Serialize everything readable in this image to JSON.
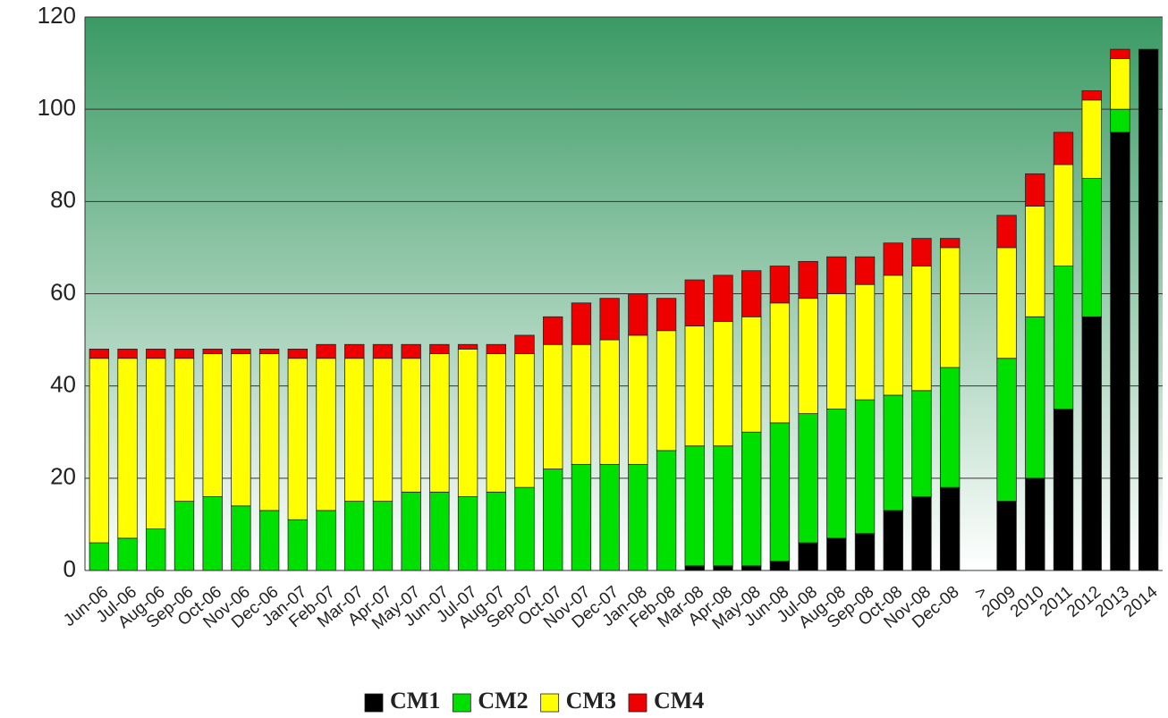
{
  "chart_data": {
    "type": "stacked_bar",
    "categories": [
      "Jun-06",
      "Jul-06",
      "Aug-06",
      "Sep-06",
      "Oct-06",
      "Nov-06",
      "Dec-06",
      "Jan-07",
      "Feb-07",
      "Mar-07",
      "Apr-07",
      "May-07",
      "Jun-07",
      "Jul-07",
      "Aug-07",
      "Sep-07",
      "Oct-07",
      "Nov-07",
      "Dec-07",
      "Jan-08",
      "Feb-08",
      "Mar-08",
      "Apr-08",
      "May-08",
      "Jun-08",
      "Jul-08",
      "Aug-08",
      "Sep-08",
      "Oct-08",
      "Nov-08",
      "Dec-08",
      ">",
      "2009",
      "2010",
      "2011",
      "2012",
      "2013",
      "2014"
    ],
    "series": [
      {
        "name": "CM1",
        "color": "#000000",
        "values": [
          0,
          0,
          0,
          0,
          0,
          0,
          0,
          0,
          0,
          0,
          0,
          0,
          0,
          0,
          0,
          0,
          0,
          0,
          0,
          0,
          0,
          1,
          1,
          1,
          2,
          6,
          7,
          8,
          13,
          16,
          18,
          null,
          15,
          20,
          35,
          55,
          95,
          113
        ]
      },
      {
        "name": "CM2",
        "color": "#00e000",
        "values": [
          6,
          7,
          9,
          15,
          16,
          14,
          13,
          11,
          13,
          15,
          15,
          17,
          17,
          16,
          17,
          18,
          22,
          23,
          23,
          23,
          26,
          26,
          26,
          29,
          30,
          28,
          28,
          29,
          25,
          23,
          26,
          null,
          31,
          35,
          31,
          30,
          5,
          0
        ]
      },
      {
        "name": "CM3",
        "color": "#ffff00",
        "values": [
          40,
          39,
          37,
          31,
          31,
          33,
          34,
          35,
          33,
          31,
          31,
          29,
          30,
          32,
          30,
          29,
          27,
          26,
          27,
          28,
          26,
          26,
          27,
          25,
          26,
          25,
          25,
          25,
          26,
          27,
          26,
          null,
          24,
          24,
          22,
          17,
          11,
          0
        ]
      },
      {
        "name": "CM4",
        "color": "#ee0000",
        "values": [
          2,
          2,
          2,
          2,
          1,
          1,
          1,
          2,
          3,
          3,
          3,
          3,
          2,
          1,
          2,
          4,
          6,
          9,
          9,
          9,
          7,
          10,
          10,
          10,
          8,
          8,
          8,
          6,
          7,
          6,
          2,
          null,
          7,
          7,
          7,
          2,
          2,
          0
        ]
      }
    ],
    "ylim": [
      0,
      120
    ],
    "yticks": [
      0,
      20,
      40,
      60,
      80,
      100,
      120
    ],
    "grid": true,
    "legend": "bottom"
  }
}
